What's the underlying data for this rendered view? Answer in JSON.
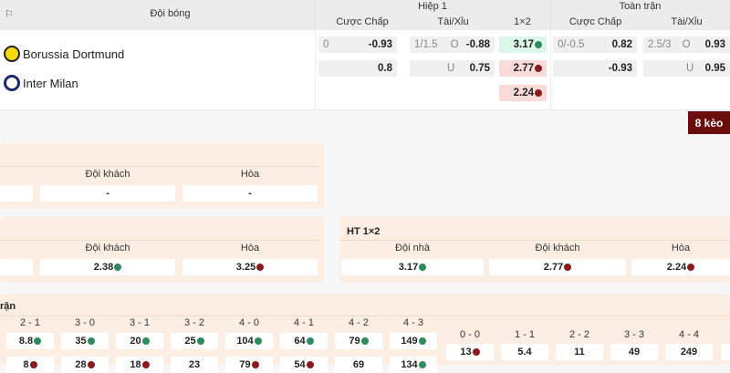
{
  "header": {
    "team_col": "Đội bóng",
    "half1": "Hiệp 1",
    "full": "Toàn trận",
    "sub": [
      "Cược Chấp",
      "Tài/Xỉu",
      "1×2",
      "Cược Chấp",
      "Tài/Xỉu"
    ]
  },
  "teams": [
    {
      "name": "Borussia Dortmund",
      "logo": "bvb-crest",
      "color": "#f5d90a"
    },
    {
      "name": "Inter Milan",
      "logo": "inter-crest",
      "color": "#1b2a6b"
    }
  ],
  "odds": {
    "h1_hcap": [
      {
        "line": "0",
        "val": "-0.93"
      },
      {
        "line": "",
        "val": "0.8"
      }
    ],
    "h1_ou": [
      {
        "line": "1/1.5",
        "side": "O",
        "val": "-0.88"
      },
      {
        "line": "",
        "side": "U",
        "val": "0.75"
      }
    ],
    "h1_1x2": [
      {
        "val": "3.17",
        "trend": "up"
      },
      {
        "val": "2.77",
        "trend": "down"
      },
      {
        "val": "2.24",
        "trend": "down"
      }
    ],
    "ft_hcap": [
      {
        "line": "0/-0.5",
        "val": "0.82"
      },
      {
        "line": "",
        "val": "-0.93"
      }
    ],
    "ft_ou": [
      {
        "line": "2.5/3",
        "side": "O",
        "val": "0.93"
      },
      {
        "line": "",
        "side": "U",
        "val": "0.95"
      }
    ]
  },
  "more_button": "8 kèo",
  "panel1": {
    "labels": [
      "Đội khách",
      "Hòa"
    ],
    "values": [
      "-",
      "-"
    ]
  },
  "panel2": {
    "labels": [
      "Đội khách",
      "Hòa"
    ],
    "values": [
      "2.38",
      "3.25"
    ]
  },
  "panel3": {
    "title": "HT 1×2",
    "labels": [
      "Đội nhà",
      "Đội khách",
      "Hòa"
    ],
    "values": [
      "3.17",
      "2.77",
      "2.24"
    ]
  },
  "panel4": {
    "title": "rận",
    "scores": [
      "2 - 1",
      "3 - 0",
      "3 - 1",
      "3 - 2",
      "4 - 0",
      "4 - 1",
      "4 - 2",
      "4 - 3"
    ],
    "home": [
      "8.8",
      "35",
      "20",
      "25",
      "104",
      "64",
      "79",
      "149"
    ],
    "away": [
      "8",
      "28",
      "18",
      "23",
      "79",
      "54",
      "69",
      "134"
    ],
    "draws": [
      "0 - 0",
      "1 - 1",
      "2 - 2",
      "3 - 3",
      "4 - 4"
    ],
    "draw_vals": [
      "13",
      "5.4",
      "11",
      "49",
      "249"
    ]
  },
  "colors": {
    "up": "#2e8b5e",
    "down": "#8b1a1a",
    "green_bg": "#dbf7ea",
    "red_bg": "#fbdada",
    "button": "#6b0d0d"
  }
}
